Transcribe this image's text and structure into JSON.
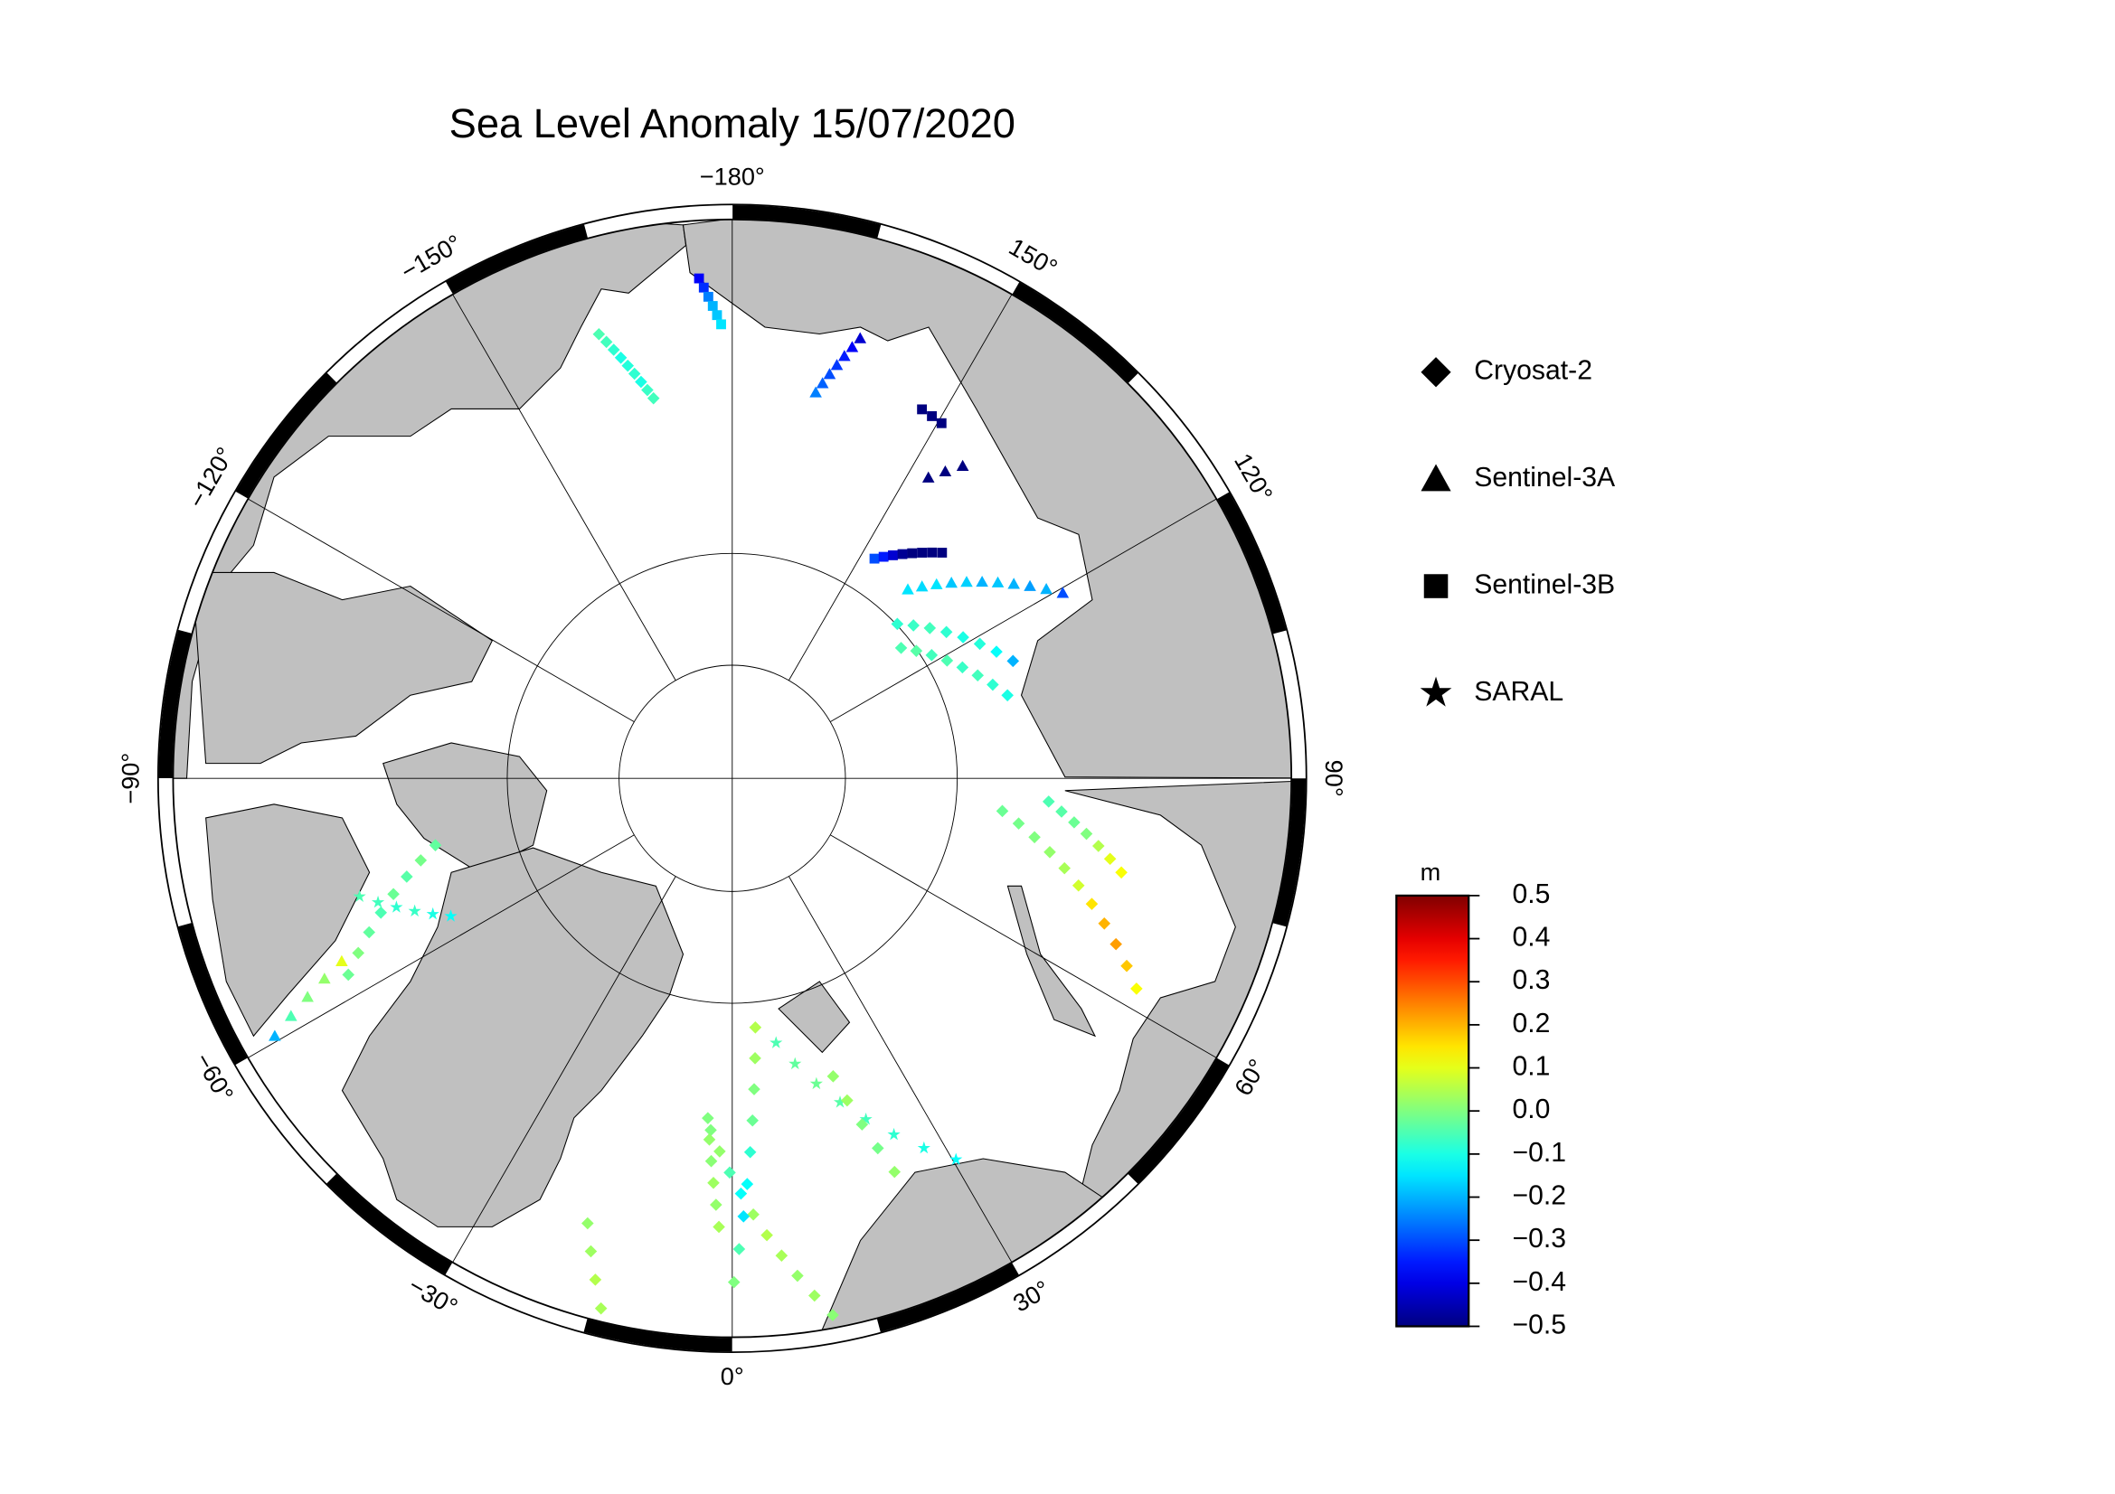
{
  "chart_data": {
    "type": "map",
    "title": "Sea Level Anomaly 15/07/2020",
    "meridian_labels": [
      {
        "value": -180,
        "label": "−180°"
      },
      {
        "value": 150,
        "label": "150°"
      },
      {
        "value": 120,
        "label": "120°"
      },
      {
        "value": 90,
        "label": "90°"
      },
      {
        "value": 60,
        "label": "60°"
      },
      {
        "value": 30,
        "label": "30°"
      },
      {
        "value": 0,
        "label": "0°"
      },
      {
        "value": -30,
        "label": "−30°"
      },
      {
        "value": -60,
        "label": "−60°"
      },
      {
        "value": -90,
        "label": "−90°"
      },
      {
        "value": -120,
        "label": "−120°"
      },
      {
        "value": -150,
        "label": "−150°"
      }
    ],
    "legend": [
      "Cryosat-2",
      "Sentinel-3A",
      "Sentinel-3B",
      "SARAL"
    ],
    "colorbar": {
      "unit": "m",
      "colormap": "jet",
      "ylim": [
        -0.5,
        0.5
      ],
      "yticks": [
        0.5,
        0.4,
        0.3,
        0.2,
        0.1,
        {
          "value": 0,
          "label": "0.0"
        },
        {
          "value": -0.1,
          "label": "−0.1"
        },
        {
          "value": -0.2,
          "label": "−0.2"
        },
        {
          "value": -0.3,
          "label": "−0.3"
        },
        {
          "value": -0.4,
          "label": "−0.4"
        },
        {
          "value": -0.5,
          "label": "−0.5"
        }
      ]
    },
    "tracks": [
      {
        "satellite": 2,
        "start": [
          -176.2,
          51.1
        ],
        "end": [
          -178.6,
          54.5
        ],
        "values": [
          -0.38,
          -0.33,
          -0.25,
          -0.2,
          -0.18,
          -0.15
        ]
      },
      {
        "satellite": 0,
        "start": [
          -163.3,
          53.8
        ],
        "end": [
          -168.3,
          59.4
        ],
        "values": [
          -0.05,
          -0.06,
          -0.08,
          -0.1,
          -0.09,
          -0.08,
          -0.1,
          -0.07,
          -0.06
        ]
      },
      {
        "satellite": 1,
        "start": [
          167.8,
          58.9
        ],
        "end": [
          163.8,
          54.2
        ],
        "values": [
          -0.25,
          -0.28,
          -0.3,
          -0.32,
          -0.35,
          -0.38,
          -0.42
        ]
      },
      {
        "satellite": 2,
        "start": [
          147.1,
          69.1
        ],
        "end": [
          137.1,
          65.5
        ],
        "values": [
          -0.3,
          -0.35,
          -0.42,
          -0.48,
          -0.5,
          -0.5,
          -0.5,
          -0.5
        ]
      },
      {
        "satellite": 1,
        "start": [
          137.1,
          69.4
        ],
        "end": [
          119.3,
          60.1
        ],
        "values": [
          -0.15,
          -0.16,
          -0.15,
          -0.18,
          -0.17,
          -0.2,
          -0.18,
          -0.2,
          -0.22,
          -0.2,
          -0.3
        ]
      },
      {
        "satellite": 0,
        "start": [
          133.1,
          71.9
        ],
        "end": [
          112.7,
          65.8
        ],
        "values": [
          -0.08,
          -0.07,
          -0.06,
          -0.08,
          -0.1,
          -0.09,
          -0.12,
          -0.2
        ]
      },
      {
        "satellite": 0,
        "start": [
          127.7,
          72.9
        ],
        "end": [
          106.8,
          67.1
        ],
        "values": [
          -0.05,
          -0.04,
          -0.06,
          -0.05,
          -0.07,
          -0.06,
          -0.08,
          -0.1
        ]
      },
      {
        "satellite": 0,
        "start": [
          83.1,
          68.3
        ],
        "end": [
          62.5,
          54.4
        ],
        "values": [
          -0.02,
          -0.01,
          0,
          0.02,
          0.04,
          0.08,
          0.15,
          0.2,
          0.22,
          0.18,
          0.12
        ]
      },
      {
        "satellite": 0,
        "start": [
          85.8,
          64.8
        ],
        "end": [
          76.4,
          58.5
        ],
        "values": [
          -0.05,
          -0.04,
          -0.02,
          0,
          0.05,
          0.1,
          0.12
        ]
      },
      {
        "satellite": 1,
        "start": [
          -60.6,
          49.4
        ],
        "end": [
          -64.9,
          56.2
        ],
        "values": [
          -0.2,
          -0.05,
          0,
          0.02,
          0.1
        ]
      },
      {
        "satellite": 0,
        "start": [
          -62.9,
          56.2
        ],
        "end": [
          -77.3,
          65.8
        ],
        "values": [
          -0.02,
          0,
          -0.03,
          -0.05,
          -0.02,
          -0.04,
          -0.01,
          -0.03
        ]
      },
      {
        "satellite": 3,
        "start": [
          -72.4,
          59.2
        ],
        "end": [
          -63.9,
          65.1
        ],
        "values": [
          -0.05,
          -0.06,
          -0.08,
          -0.07,
          -0.1,
          -0.12
        ]
      },
      {
        "satellite": 0,
        "start": [
          -3.5,
          62.1
        ],
        "end": [
          10.6,
          47.9
        ],
        "values": [
          0,
          0.02,
          -0.05,
          -0.12,
          0.03,
          0.05,
          0.04,
          0.02,
          0.03,
          0.01
        ]
      },
      {
        "satellite": 0,
        "start": [
          -4.1,
          63.0
        ],
        "end": [
          -1.7,
          54.9
        ],
        "values": [
          0,
          0.02,
          0.01,
          0.03,
          0.02,
          0.04
        ]
      },
      {
        "satellite": 0,
        "start": [
          5.3,
          70.0
        ],
        "end": [
          0.2,
          50.9
        ],
        "values": [
          0.05,
          0.03,
          0,
          -0.02,
          -0.08,
          -0.12,
          -0.15,
          -0.05,
          0
        ]
      },
      {
        "satellite": 3,
        "start": [
          9.4,
          68.6
        ],
        "end": [
          30.4,
          55.4
        ],
        "values": [
          -0.05,
          -0.03,
          -0.02,
          -0.04,
          -0.06,
          -0.08,
          -0.1,
          -0.12
        ]
      },
      {
        "satellite": 0,
        "start": [
          18.7,
          65.0
        ],
        "end": [
          22.4,
          56.6
        ],
        "values": [
          0.02,
          0.03,
          0,
          -0.01,
          0.02
        ]
      },
      {
        "satellite": 0,
        "start": [
          -18.0,
          53.5
        ],
        "end": [
          -13.9,
          47.9
        ],
        "values": [
          0.02,
          0.03,
          0.05,
          0.04
        ]
      },
      {
        "satellite": 2,
        "start": [
          152.8,
          57.4
        ],
        "end": [
          149.5,
          57.6
        ],
        "values": [
          -0.5,
          -0.5,
          -0.5
        ]
      },
      {
        "satellite": 1,
        "start": [
          146.9,
          61.6
        ],
        "end": [
          143.6,
          59.4
        ],
        "values": [
          -0.5,
          -0.5,
          -0.5
        ]
      }
    ]
  }
}
